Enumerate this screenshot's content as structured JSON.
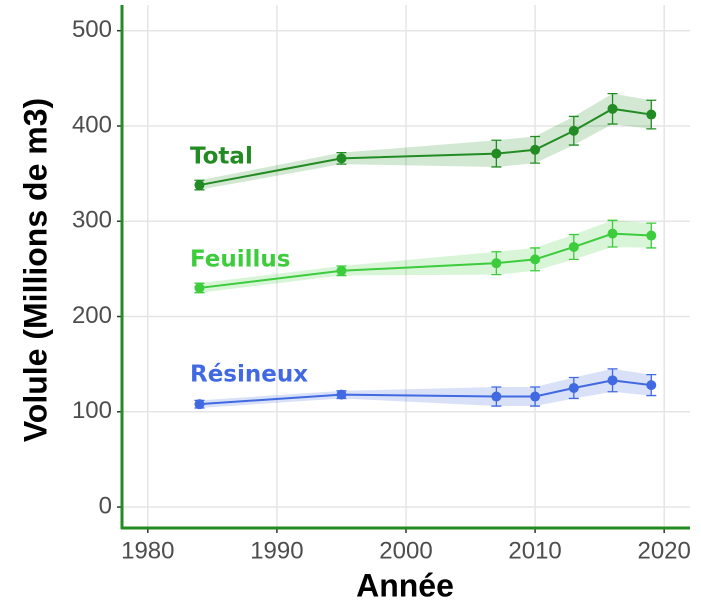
{
  "chart_data": {
    "type": "line",
    "x_label": "Année",
    "y_label": "Volule (Millions de m3)",
    "x": [
      1984,
      1995,
      2007,
      2010,
      2013,
      2016,
      2019
    ],
    "xlim": [
      1978,
      2022
    ],
    "xticks": [
      1980,
      1990,
      2000,
      2010,
      2020
    ],
    "ylim": [
      -22,
      527
    ],
    "yticks": [
      0,
      100,
      200,
      300,
      400,
      500
    ],
    "grid": true,
    "series": [
      {
        "name": "Total",
        "color": "#238b23",
        "values": [
          338,
          366,
          371,
          375,
          395,
          418,
          412
        ],
        "errors": [
          5,
          6,
          14,
          14,
          15,
          16,
          15
        ]
      },
      {
        "name": "Feuillus",
        "color": "#3ccc3c",
        "values": [
          230,
          248,
          256,
          260,
          273,
          287,
          285
        ],
        "errors": [
          5,
          5,
          12,
          12,
          13,
          14,
          13
        ]
      },
      {
        "name": "Résineux",
        "color": "#4169e1",
        "values": [
          108,
          118,
          116,
          116,
          125,
          133,
          128
        ],
        "errors": [
          4,
          4,
          10,
          10,
          11,
          12,
          11
        ]
      }
    ]
  }
}
